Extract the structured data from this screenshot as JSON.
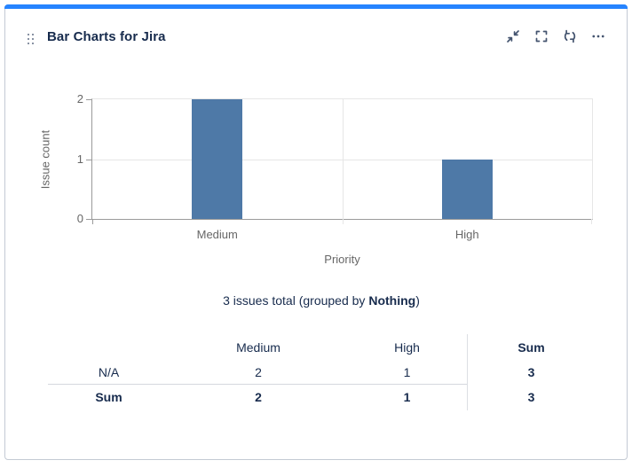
{
  "card": {
    "title": "Bar Charts for Jira",
    "accent_color": "#2684FF",
    "toolbar_icons": [
      "collapse-icon",
      "fullscreen-icon",
      "refresh-icon",
      "more-icon"
    ]
  },
  "chart_data": {
    "type": "bar",
    "title": "",
    "categories": [
      "Medium",
      "High"
    ],
    "values": [
      2,
      1
    ],
    "xlabel": "Priority",
    "ylabel": "Issue count",
    "ylim": [
      0,
      2
    ],
    "yticks": [
      0,
      1,
      2
    ],
    "bar_color": "#4E79A7",
    "grid": true,
    "legend": "none"
  },
  "summary": {
    "prefix": "3 issues total (grouped by ",
    "bold": "Nothing",
    "suffix": ")"
  },
  "table": {
    "columns": [
      "",
      "Medium",
      "High",
      "Sum"
    ],
    "rows": [
      {
        "label": "N/A",
        "medium": "2",
        "high": "1",
        "sum": "3"
      },
      {
        "label": "Sum",
        "medium": "2",
        "high": "1",
        "sum": "3"
      }
    ]
  }
}
